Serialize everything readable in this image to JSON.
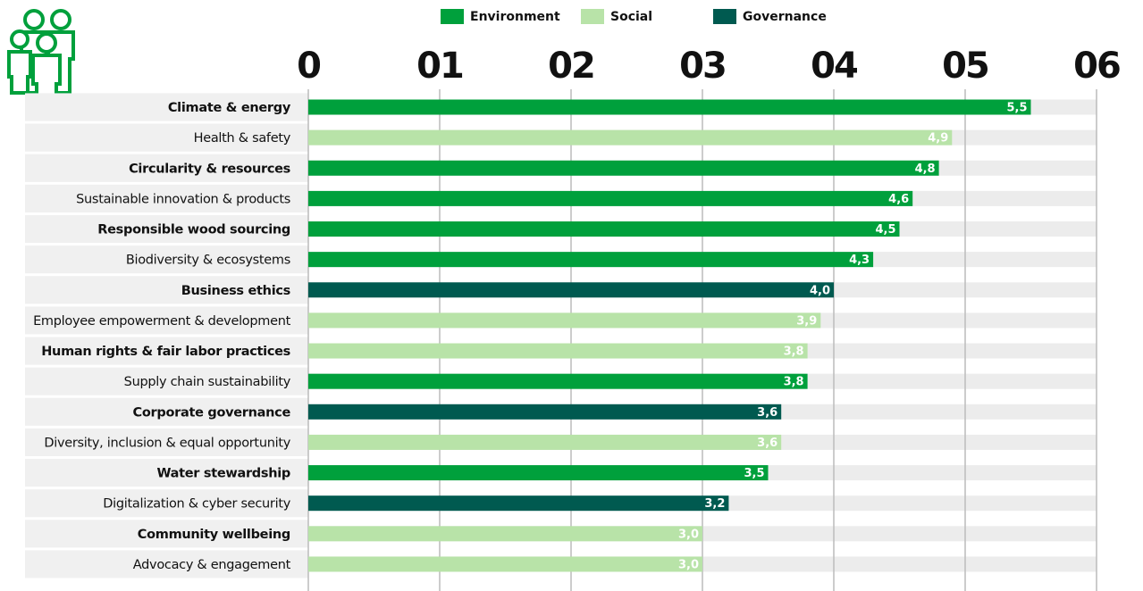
{
  "chart_data": {
    "type": "bar",
    "orientation": "horizontal",
    "categories": [
      "Climate & energy",
      "Health & safety",
      "Circularity & resources",
      "Sustainable innovation & products",
      "Responsible wood sourcing",
      "Biodiversity & ecosystems",
      "Business ethics",
      "Employee empowerment & development",
      "Human rights & fair labor practices",
      "Supply chain sustainability",
      "Corporate governance",
      "Diversity, inclusion & equal opportunity",
      "Water stewardship",
      "Digitalization & cyber security",
      "Community wellbeing",
      "Advocacy & engagement"
    ],
    "series": [
      {
        "name": "Environment",
        "color": "#00a03c",
        "values": [
          5.5,
          null,
          4.8,
          4.6,
          4.5,
          4.3,
          null,
          null,
          null,
          3.8,
          null,
          null,
          3.5,
          null,
          null,
          null
        ],
        "value_labels": [
          "5,5",
          null,
          "4,8",
          "4,6",
          "4,5",
          "4,3",
          null,
          null,
          null,
          "3,8",
          null,
          null,
          "3,5",
          null,
          null,
          null
        ]
      },
      {
        "name": "Social",
        "color": "#b8e3a8",
        "values": [
          null,
          4.9,
          null,
          null,
          null,
          null,
          null,
          3.9,
          3.8,
          null,
          null,
          3.6,
          null,
          null,
          3.0,
          3.0
        ],
        "value_labels": [
          null,
          "4,9",
          null,
          null,
          null,
          null,
          null,
          "3,9",
          "3,8",
          null,
          null,
          "3,6",
          null,
          null,
          "3,0",
          "3,0"
        ]
      },
      {
        "name": "Governance",
        "color": "#005a50",
        "values": [
          null,
          null,
          null,
          null,
          null,
          null,
          4.0,
          null,
          null,
          null,
          3.6,
          null,
          null,
          3.2,
          null,
          null
        ],
        "value_labels": [
          null,
          null,
          null,
          null,
          null,
          null,
          "4,0",
          null,
          null,
          null,
          "3,6",
          null,
          null,
          "3,2",
          null,
          null
        ]
      }
    ],
    "xlim": [
      0,
      6
    ],
    "xticks": [
      0,
      {
        "value": 1,
        "label": "01"
      },
      {
        "value": 2,
        "label": "02"
      },
      {
        "value": 3,
        "label": "03"
      },
      {
        "value": 4,
        "label": "04"
      },
      {
        "value": 5,
        "label": "05"
      },
      {
        "value": 6,
        "label": "06"
      }
    ],
    "grid": true,
    "legend": "top"
  }
}
